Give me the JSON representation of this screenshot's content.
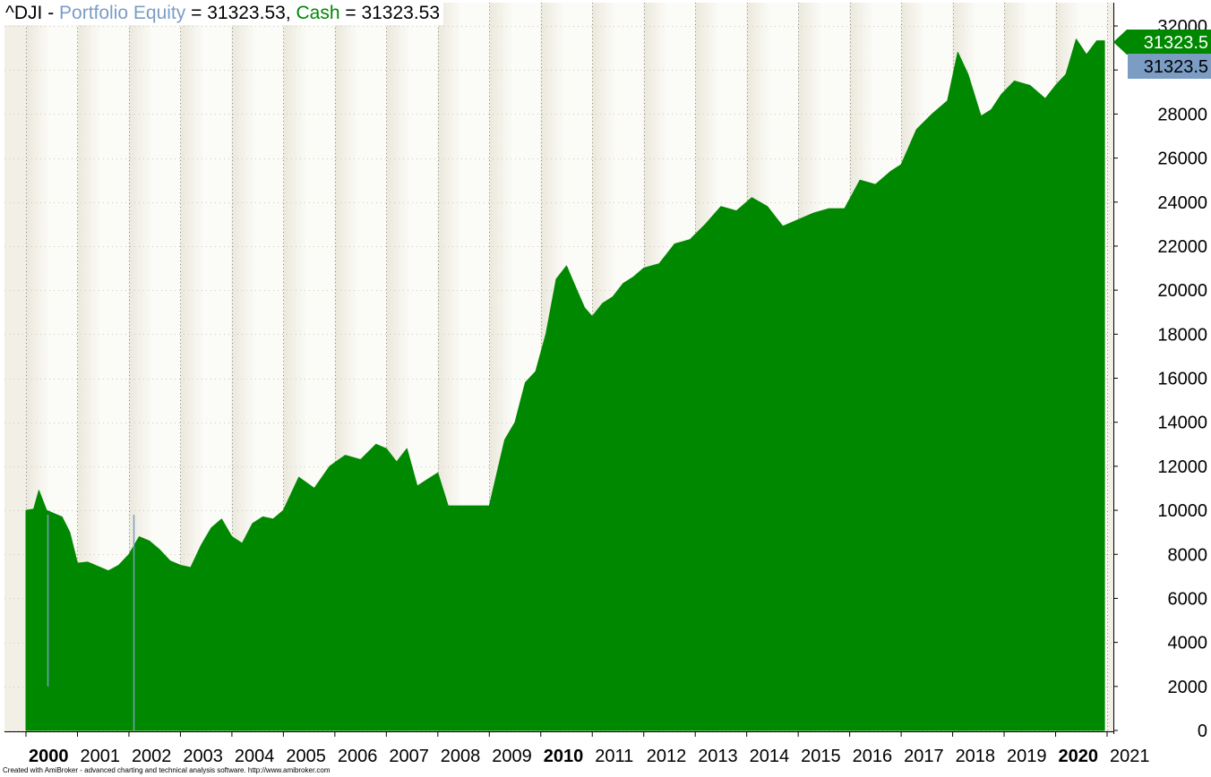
{
  "header": {
    "symbol": "^DJI",
    "sep": " - ",
    "equity_label": "Portfolio Equity",
    "eq": " = ",
    "equity_value": "31323.53",
    "comma": ", ",
    "cash_label": "Cash",
    "cash_value": "31323.53"
  },
  "footer": {
    "credit": "Created with AmiBroker - advanced charting and technical analysis software. http://www.amibroker.com"
  },
  "chart_data": {
    "type": "area",
    "title": "",
    "xlabel": "",
    "ylabel": "",
    "ylim": [
      0,
      32000
    ],
    "yticks": [
      0,
      2000,
      4000,
      6000,
      8000,
      10000,
      12000,
      14000,
      16000,
      18000,
      20000,
      22000,
      24000,
      26000,
      28000,
      30000,
      32000
    ],
    "xticks": [
      "2000",
      "2001",
      "2002",
      "2003",
      "2004",
      "2005",
      "2006",
      "2007",
      "2008",
      "2009",
      "2010",
      "2011",
      "2012",
      "2013",
      "2014",
      "2015",
      "2016",
      "2017",
      "2018",
      "2019",
      "2020",
      "2021"
    ],
    "bold_xticks": [
      "2000",
      "2010",
      "2020"
    ],
    "grid": true,
    "last_value_labels": [
      {
        "series": "Cash",
        "text": "31323.5",
        "color": "#008800"
      },
      {
        "series": "Portfolio Equity",
        "text": "31323.5",
        "color": "#7b9dc4"
      }
    ],
    "series": [
      {
        "name": "Cash",
        "color": "#008800",
        "x": [
          2000.0,
          2000.15,
          2000.25,
          2000.4,
          2000.55,
          2000.7,
          2000.85,
          2001.0,
          2001.2,
          2001.4,
          2001.6,
          2001.8,
          2002.0,
          2002.2,
          2002.4,
          2002.6,
          2002.8,
          2003.0,
          2003.2,
          2003.4,
          2003.6,
          2003.8,
          2004.0,
          2004.2,
          2004.4,
          2004.6,
          2004.8,
          2005.0,
          2005.3,
          2005.6,
          2005.9,
          2006.2,
          2006.5,
          2006.8,
          2007.0,
          2007.2,
          2007.4,
          2007.6,
          2007.8,
          2008.0,
          2008.2,
          2008.4,
          2008.6,
          2008.8,
          2009.0,
          2009.3,
          2009.5,
          2009.7,
          2009.9,
          2010.1,
          2010.3,
          2010.5,
          2010.7,
          2010.85,
          2011.0,
          2011.2,
          2011.4,
          2011.6,
          2011.8,
          2012.0,
          2012.3,
          2012.6,
          2012.9,
          2013.2,
          2013.5,
          2013.8,
          2014.1,
          2014.4,
          2014.7,
          2015.0,
          2015.3,
          2015.6,
          2015.9,
          2016.2,
          2016.5,
          2016.8,
          2017.0,
          2017.3,
          2017.6,
          2017.9,
          2018.1,
          2018.3,
          2018.55,
          2018.75,
          2018.95,
          2019.2,
          2019.5,
          2019.8,
          2020.0,
          2020.2,
          2020.4,
          2020.6,
          2020.8,
          2020.95
        ],
        "values": [
          10000,
          10050,
          10900,
          10000,
          9850,
          9700,
          9000,
          7600,
          7650,
          7450,
          7250,
          7500,
          8000,
          8800,
          8600,
          8200,
          7700,
          7500,
          7400,
          8400,
          9200,
          9600,
          8800,
          8500,
          9400,
          9700,
          9600,
          10000,
          11500,
          11000,
          12000,
          12500,
          12300,
          13000,
          12800,
          12200,
          12800,
          11100,
          11400,
          11700,
          10200,
          10200,
          10200,
          10200,
          10200,
          13200,
          14000,
          15800,
          16300,
          18000,
          20500,
          21100,
          20000,
          19200,
          18800,
          19400,
          19700,
          20300,
          20600,
          21000,
          21200,
          22100,
          22300,
          23000,
          23800,
          23600,
          24200,
          23800,
          22900,
          23200,
          23500,
          23700,
          23700,
          25000,
          24800,
          25400,
          25700,
          27300,
          28000,
          28600,
          30800,
          29800,
          27900,
          28200,
          28900,
          29500,
          29300,
          28700,
          29300,
          29800,
          31400,
          30700,
          31323.5,
          31323.5
        ]
      },
      {
        "name": "Portfolio Equity",
        "color": "#7b9dc4",
        "dips": [
          {
            "x": 2000.42,
            "value": 2000
          },
          {
            "x": 2002.08,
            "value": 0
          }
        ]
      }
    ]
  }
}
